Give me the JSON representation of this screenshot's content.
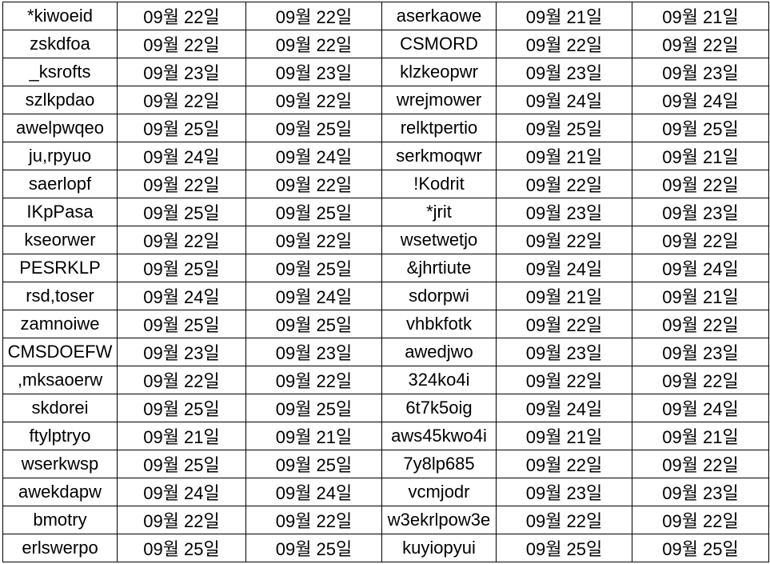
{
  "sheet": {
    "rows": [
      [
        "*kiwoeid",
        "09월 22일",
        "09월 22일",
        "aserkaowe",
        "09월 21일",
        "09월 21일"
      ],
      [
        "zskdfoa",
        "09월 22일",
        "09월 22일",
        "CSMORD",
        "09월 22일",
        "09월 22일"
      ],
      [
        "_ksrofts",
        "09월 23일",
        "09월 23일",
        "klzkeopwr",
        "09월 23일",
        "09월 23일"
      ],
      [
        "szlkpdao",
        "09월 22일",
        "09월 22일",
        "wrejmower",
        "09월 24일",
        "09월 24일"
      ],
      [
        "awelpwqeo",
        "09월 25일",
        "09월 25일",
        "relktpertio",
        "09월 25일",
        "09월 25일"
      ],
      [
        "ju,rpyuo",
        "09월 24일",
        "09월 24일",
        "serkmoqwr",
        "09월 21일",
        "09월 21일"
      ],
      [
        "saerlopf",
        "09월 22일",
        "09월 22일",
        "!Kodrit",
        "09월 22일",
        "09월 22일"
      ],
      [
        "IKpPasa",
        "09월 25일",
        "09월 25일",
        "*jrit",
        "09월 23일",
        "09월 23일"
      ],
      [
        "kseorwer",
        "09월 22일",
        "09월 22일",
        "wsetwetjo",
        "09월 22일",
        "09월 22일"
      ],
      [
        "PESRKLP",
        "09월 25일",
        "09월 25일",
        "&jhrtiute",
        "09월 24일",
        "09월 24일"
      ],
      [
        "rsd,toser",
        "09월 24일",
        "09월 24일",
        "sdorpwi",
        "09월 21일",
        "09월 21일"
      ],
      [
        "zamnoiwe",
        "09월 25일",
        "09월 25일",
        "vhbkfotk",
        "09월 22일",
        "09월 22일"
      ],
      [
        "CMSDOEFW",
        "09월 23일",
        "09월 23일",
        "awedjwo",
        "09월 23일",
        "09월 23일"
      ],
      [
        ",mksaoerw",
        "09월 22일",
        "09월 22일",
        "324ko4i",
        "09월 22일",
        "09월 22일"
      ],
      [
        "skdorei",
        "09월 25일",
        "09월 25일",
        "6t7k5oig",
        "09월 24일",
        "09월 24일"
      ],
      [
        "ftylptryo",
        "09월 21일",
        "09월 21일",
        "aws45kwo4i",
        "09월 21일",
        "09월 21일"
      ],
      [
        "wserkwsp",
        "09월 25일",
        "09월 25일",
        "7y8lp685",
        "09월 22일",
        "09월 22일"
      ],
      [
        "awekdapw",
        "09월 24일",
        "09월 24일",
        "vcmjodr",
        "09월 23일",
        "09월 23일"
      ],
      [
        "bmotry",
        "09월 22일",
        "09월 22일",
        "w3ekrlpow3e",
        "09월 22일",
        "09월 22일"
      ],
      [
        "erlswerpo",
        "09월 25일",
        "09월 25일",
        "kuyiopyui",
        "09월 25일",
        "09월 25일"
      ]
    ]
  }
}
